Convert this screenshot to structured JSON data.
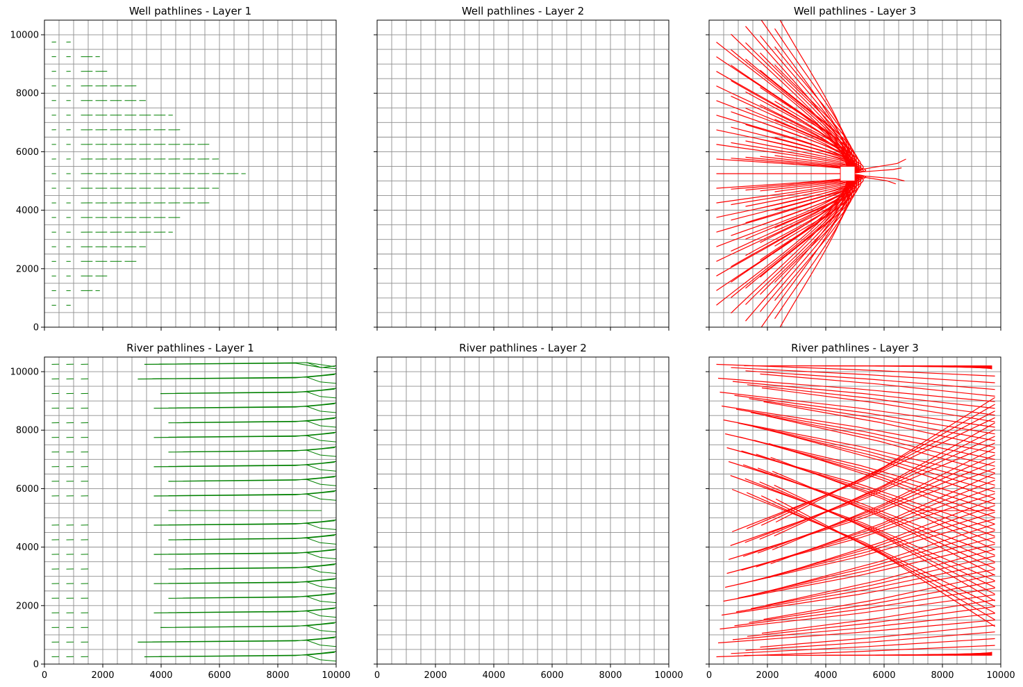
{
  "chart_data": [
    {
      "type": "line",
      "title": "Well pathlines - Layer 1",
      "xlim": [
        0,
        10000
      ],
      "ylim": [
        0,
        10500
      ],
      "x_ticks": [],
      "y_ticks": [
        "0",
        "2000",
        "4000",
        "6000",
        "8000",
        "10000"
      ],
      "grid": true,
      "color": "#008000",
      "pattern": "well-layer1"
    },
    {
      "type": "line",
      "title": "Well pathlines - Layer 2",
      "xlim": [
        0,
        10000
      ],
      "ylim": [
        0,
        10500
      ],
      "x_ticks": [],
      "y_ticks": [],
      "grid": true,
      "color": "#008000",
      "pattern": "empty"
    },
    {
      "type": "line",
      "title": "Well pathlines - Layer 3",
      "xlim": [
        0,
        10000
      ],
      "ylim": [
        0,
        10500
      ],
      "x_ticks": [],
      "y_ticks": [],
      "grid": true,
      "color": "#ff0000",
      "pattern": "well-layer3",
      "well_x": 4750,
      "well_y": 5250
    },
    {
      "type": "line",
      "title": "River pathlines - Layer 1",
      "xlim": [
        0,
        10000
      ],
      "ylim": [
        0,
        10500
      ],
      "x_ticks": [
        "0",
        "2000",
        "4000",
        "6000",
        "8000",
        "10000"
      ],
      "y_ticks": [
        "0",
        "2000",
        "4000",
        "6000",
        "8000",
        "10000"
      ],
      "grid": true,
      "color": "#008000",
      "pattern": "river-layer1"
    },
    {
      "type": "line",
      "title": "River pathlines - Layer 2",
      "xlim": [
        0,
        10000
      ],
      "ylim": [
        0,
        10500
      ],
      "x_ticks": [
        "0",
        "2000",
        "4000",
        "6000",
        "8000",
        "10000"
      ],
      "y_ticks": [],
      "grid": true,
      "color": "#008000",
      "pattern": "empty"
    },
    {
      "type": "line",
      "title": "River pathlines - Layer 3",
      "xlim": [
        0,
        10000
      ],
      "ylim": [
        0,
        10500
      ],
      "x_ticks": [
        "0",
        "2000",
        "4000",
        "6000",
        "8000",
        "10000"
      ],
      "y_ticks": [],
      "grid": true,
      "color": "#ff0000",
      "pattern": "river-layer3"
    }
  ]
}
